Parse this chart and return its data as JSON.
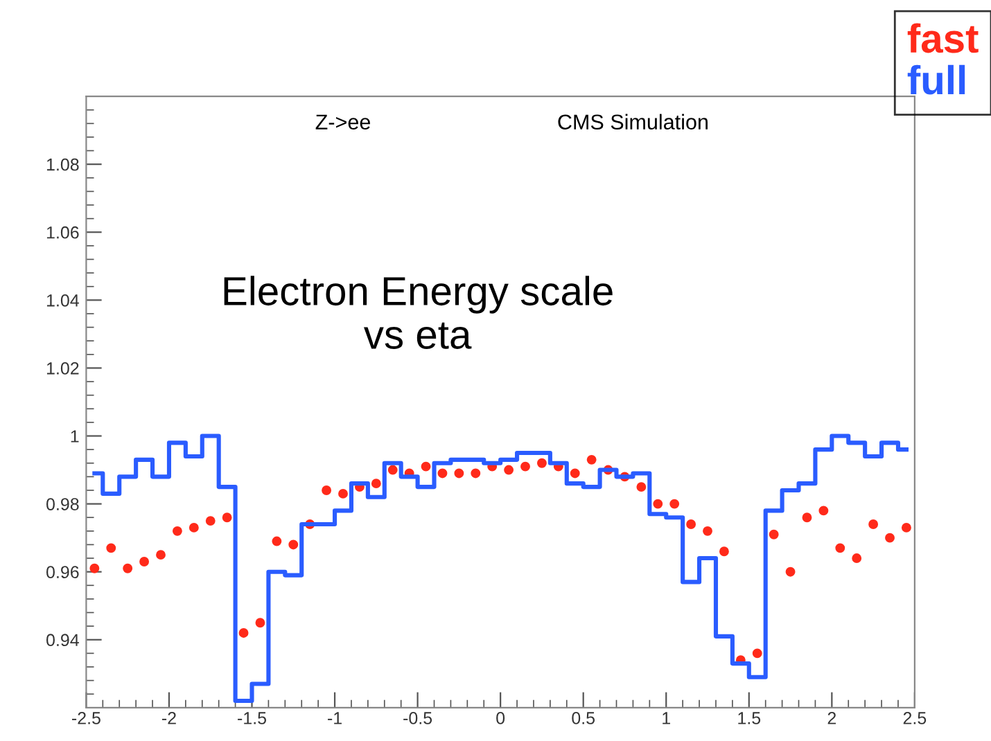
{
  "chart_data": {
    "type": "step",
    "title": "Electron Energy scale\nvs eta",
    "annotations": [
      "Z->ee",
      "CMS Simulation"
    ],
    "xlim": [
      -2.5,
      2.5
    ],
    "xticks": [
      -2.5,
      -2,
      -1.5,
      -1,
      -0.5,
      0,
      0.5,
      1,
      1.5,
      2,
      2.5
    ],
    "ylim": [
      0.92,
      1.1
    ],
    "yticks": [
      0.94,
      0.96,
      0.98,
      1,
      1.02,
      1.04,
      1.06,
      1.08
    ],
    "grid": false,
    "legend": "top right",
    "series": [
      {
        "name": "fast",
        "type": "scatter",
        "marker": "circle",
        "color": "#ff2a1a",
        "x": [
          -2.45,
          -2.35,
          -2.25,
          -2.15,
          -2.05,
          -1.95,
          -1.85,
          -1.75,
          -1.65,
          -1.55,
          -1.45,
          -1.35,
          -1.25,
          -1.15,
          -1.05,
          -0.95,
          -0.85,
          -0.75,
          -0.65,
          -0.55,
          -0.45,
          -0.35,
          -0.25,
          -0.15,
          -0.05,
          0.05,
          0.15,
          0.25,
          0.35,
          0.45,
          0.55,
          0.65,
          0.75,
          0.85,
          0.95,
          1.05,
          1.15,
          1.25,
          1.35,
          1.45,
          1.55,
          1.65,
          1.75,
          1.85,
          1.95,
          2.05,
          2.15,
          2.25,
          2.35,
          2.45
        ],
        "values": [
          0.961,
          0.967,
          0.961,
          0.963,
          0.965,
          0.972,
          0.973,
          0.975,
          0.976,
          0.942,
          0.945,
          0.969,
          0.968,
          0.974,
          0.984,
          0.983,
          0.985,
          0.986,
          0.99,
          0.989,
          0.991,
          0.989,
          0.989,
          0.989,
          0.991,
          0.99,
          0.991,
          0.992,
          0.991,
          0.989,
          0.993,
          0.99,
          0.988,
          0.985,
          0.98,
          0.98,
          0.974,
          0.972,
          0.966,
          0.934,
          0.936,
          0.971,
          0.96,
          0.976,
          0.978,
          0.967,
          0.964,
          0.974,
          0.97,
          0.973
        ]
      },
      {
        "name": "full",
        "color": "#2a5cff",
        "x": [
          -2.45,
          -2.35,
          -2.25,
          -2.15,
          -2.05,
          -1.95,
          -1.85,
          -1.75,
          -1.65,
          -1.55,
          -1.45,
          -1.35,
          -1.25,
          -1.15,
          -1.05,
          -0.95,
          -0.85,
          -0.75,
          -0.65,
          -0.55,
          -0.45,
          -0.35,
          -0.25,
          -0.15,
          -0.05,
          0.05,
          0.15,
          0.25,
          0.35,
          0.45,
          0.55,
          0.65,
          0.75,
          0.85,
          0.95,
          1.05,
          1.15,
          1.25,
          1.35,
          1.45,
          1.55,
          1.65,
          1.75,
          1.85,
          1.95,
          2.05,
          2.15,
          2.25,
          2.35,
          2.45
        ],
        "values": [
          0.989,
          0.983,
          0.988,
          0.993,
          0.988,
          0.998,
          0.994,
          1.0,
          0.985,
          0.922,
          0.927,
          0.96,
          0.959,
          0.974,
          0.974,
          0.978,
          0.986,
          0.982,
          0.992,
          0.988,
          0.985,
          0.992,
          0.993,
          0.993,
          0.992,
          0.993,
          0.995,
          0.995,
          0.992,
          0.986,
          0.985,
          0.99,
          0.988,
          0.989,
          0.977,
          0.976,
          0.957,
          0.964,
          0.941,
          0.933,
          0.929,
          0.978,
          0.984,
          0.986,
          0.996,
          1.0,
          0.998,
          0.994,
          0.998,
          0.996
        ]
      }
    ]
  }
}
